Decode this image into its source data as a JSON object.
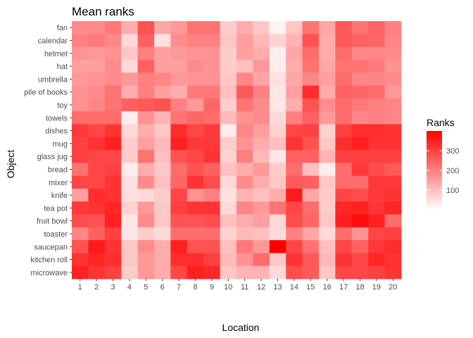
{
  "chart_data": {
    "type": "heatmap",
    "title": "Mean ranks",
    "xlabel": "Location",
    "ylabel": "Object",
    "x": [
      "1",
      "2",
      "3",
      "4",
      "5",
      "6",
      "7",
      "8",
      "9",
      "10",
      "11",
      "12",
      "13",
      "14",
      "15",
      "16",
      "17",
      "18",
      "19",
      "20"
    ],
    "y": [
      "fan",
      "calendar",
      "helmet",
      "hat",
      "umbrella",
      "pile of books",
      "toy",
      "towels",
      "dishes",
      "mug",
      "glass jug",
      "bread",
      "mixer",
      "knife",
      "tea pot",
      "fruit bowl",
      "toaster",
      "saucepan",
      "kitchen roll",
      "microwave"
    ],
    "values": [
      [
        180,
        180,
        210,
        130,
        270,
        140,
        160,
        220,
        220,
        80,
        130,
        90,
        20,
        90,
        220,
        140,
        260,
        220,
        240,
        200
      ],
      [
        200,
        210,
        190,
        60,
        250,
        50,
        180,
        200,
        200,
        90,
        150,
        110,
        70,
        120,
        270,
        130,
        260,
        250,
        240,
        190
      ],
      [
        170,
        160,
        170,
        90,
        200,
        150,
        160,
        170,
        170,
        80,
        150,
        130,
        30,
        140,
        230,
        130,
        230,
        190,
        190,
        180
      ],
      [
        150,
        150,
        180,
        60,
        250,
        150,
        150,
        180,
        170,
        80,
        100,
        160,
        30,
        130,
        220,
        140,
        220,
        220,
        210,
        170
      ],
      [
        160,
        170,
        180,
        160,
        200,
        190,
        160,
        170,
        170,
        90,
        190,
        140,
        50,
        140,
        190,
        150,
        230,
        190,
        190,
        180
      ],
      [
        170,
        180,
        220,
        130,
        200,
        150,
        130,
        210,
        210,
        100,
        260,
        200,
        40,
        150,
        330,
        130,
        250,
        240,
        230,
        160
      ],
      [
        170,
        190,
        220,
        250,
        260,
        270,
        200,
        160,
        240,
        80,
        220,
        180,
        40,
        130,
        270,
        180,
        230,
        210,
        200,
        190
      ],
      [
        230,
        230,
        230,
        30,
        170,
        120,
        220,
        240,
        230,
        110,
        170,
        180,
        60,
        200,
        250,
        160,
        230,
        190,
        200,
        190
      ],
      [
        310,
        290,
        320,
        60,
        130,
        90,
        330,
        290,
        310,
        30,
        190,
        150,
        70,
        290,
        300,
        70,
        300,
        330,
        330,
        320
      ],
      [
        300,
        320,
        350,
        80,
        150,
        110,
        350,
        310,
        310,
        80,
        170,
        130,
        100,
        320,
        270,
        90,
        330,
        350,
        320,
        320
      ],
      [
        300,
        290,
        290,
        80,
        220,
        100,
        270,
        290,
        320,
        70,
        200,
        110,
        40,
        250,
        250,
        120,
        300,
        300,
        300,
        300
      ],
      [
        220,
        290,
        300,
        30,
        130,
        90,
        230,
        270,
        250,
        100,
        130,
        160,
        80,
        230,
        100,
        30,
        230,
        310,
        280,
        260
      ],
      [
        290,
        290,
        320,
        50,
        180,
        100,
        240,
        320,
        280,
        60,
        180,
        130,
        90,
        260,
        250,
        90,
        230,
        230,
        310,
        310
      ],
      [
        150,
        330,
        320,
        50,
        60,
        80,
        290,
        170,
        200,
        50,
        120,
        100,
        130,
        360,
        140,
        80,
        290,
        280,
        310,
        320
      ],
      [
        310,
        320,
        340,
        70,
        160,
        90,
        300,
        320,
        320,
        60,
        190,
        160,
        220,
        290,
        230,
        80,
        340,
        350,
        320,
        340
      ],
      [
        280,
        270,
        350,
        40,
        180,
        90,
        270,
        270,
        280,
        100,
        130,
        150,
        60,
        280,
        240,
        90,
        350,
        380,
        350,
        230
      ],
      [
        190,
        250,
        300,
        40,
        80,
        60,
        230,
        230,
        230,
        70,
        110,
        100,
        60,
        200,
        140,
        60,
        230,
        170,
        290,
        300
      ],
      [
        270,
        360,
        320,
        90,
        180,
        130,
        350,
        270,
        270,
        100,
        210,
        160,
        400,
        290,
        220,
        100,
        290,
        250,
        310,
        330
      ],
      [
        320,
        340,
        330,
        90,
        160,
        130,
        330,
        330,
        300,
        110,
        170,
        230,
        90,
        320,
        260,
        110,
        320,
        290,
        340,
        320
      ],
      [
        350,
        320,
        300,
        80,
        160,
        130,
        290,
        350,
        340,
        90,
        120,
        120,
        60,
        280,
        260,
        90,
        290,
        290,
        300,
        320
      ]
    ],
    "color_low": "#ffffff",
    "color_high": "#ff0000",
    "value_range": [
      0,
      400
    ],
    "legend": {
      "title": "Ranks",
      "ticks": [
        100,
        200,
        300
      ],
      "placement": "right"
    }
  }
}
